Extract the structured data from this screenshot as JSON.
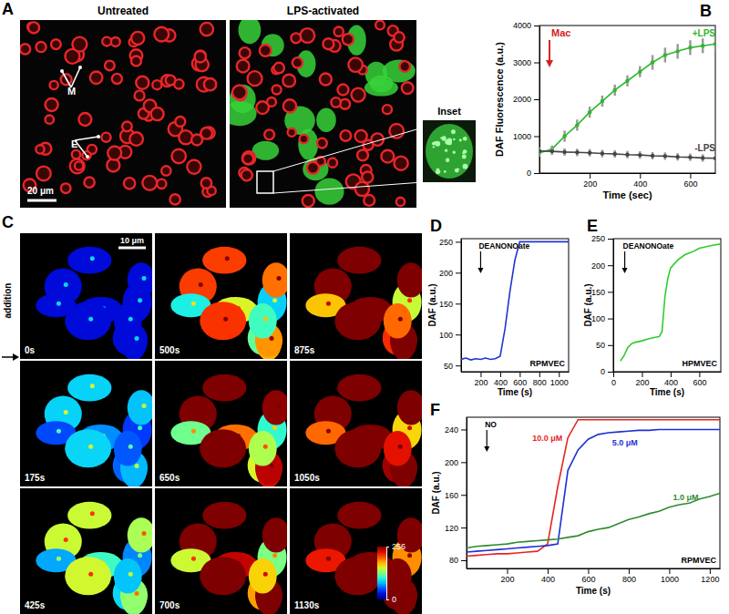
{
  "chart_data": [
    {
      "type": "line",
      "title": "B",
      "xlabel": "Time (sec)",
      "ylabel": "DAF Fluorescence (a.u.)",
      "xlim": [
        0,
        700
      ],
      "xticks": [
        200,
        400,
        600
      ],
      "ylim": [
        0,
        4000
      ],
      "yticks": [
        0,
        1000,
        2000,
        3000,
        4000
      ],
      "annotations": [
        {
          "text": "Mac",
          "x": 40
        }
      ],
      "series": [
        {
          "name": "+LPS",
          "color": "#2db82d",
          "x": [
            0,
            50,
            100,
            150,
            200,
            250,
            300,
            350,
            400,
            450,
            500,
            550,
            600,
            650,
            700
          ],
          "values": [
            550,
            650,
            1000,
            1300,
            1650,
            1950,
            2250,
            2500,
            2750,
            3000,
            3200,
            3300,
            3400,
            3450,
            3500
          ],
          "errors": [
            100,
            100,
            150,
            150,
            150,
            150,
            150,
            150,
            150,
            200,
            200,
            200,
            200,
            200,
            200
          ]
        },
        {
          "name": "-LPS",
          "color": "#444444",
          "x": [
            0,
            50,
            100,
            150,
            200,
            250,
            300,
            350,
            400,
            450,
            500,
            550,
            600,
            650,
            700
          ],
          "values": [
            600,
            590,
            570,
            560,
            550,
            530,
            520,
            500,
            490,
            470,
            460,
            440,
            430,
            410,
            400
          ],
          "errors": [
            100,
            100,
            100,
            100,
            100,
            100,
            100,
            100,
            100,
            100,
            100,
            100,
            100,
            100,
            100
          ]
        }
      ]
    },
    {
      "type": "line",
      "title": "D",
      "xlabel": "Time (s)",
      "ylabel": "DAF (a.u.)",
      "xlim": [
        0,
        1100
      ],
      "xticks": [
        200,
        400,
        600,
        800,
        1000
      ],
      "ylim": [
        40,
        255
      ],
      "yticks": [
        50,
        100,
        150,
        200,
        250
      ],
      "annotations": [
        {
          "text": "DEANONOate",
          "x": 200
        },
        {
          "text": "RPMVEC"
        }
      ],
      "series": [
        {
          "color": "#2035d0",
          "x": [
            0,
            50,
            100,
            150,
            200,
            250,
            300,
            350,
            400,
            450,
            500,
            550,
            600,
            650,
            700,
            750,
            800,
            850,
            900,
            950,
            1000,
            1050,
            1100
          ],
          "values": [
            60,
            62,
            59,
            61,
            60,
            62,
            60,
            61,
            65,
            110,
            170,
            220,
            250,
            250,
            250,
            250,
            250,
            250,
            250,
            250,
            250,
            250,
            250
          ]
        }
      ]
    },
    {
      "type": "line",
      "title": "E",
      "xlabel": "Time (s)",
      "ylabel": "DAF (a.u.)",
      "xlim": [
        0,
        750
      ],
      "xticks": [
        0,
        200,
        400,
        600
      ],
      "ylim": [
        0,
        250
      ],
      "yticks": [
        0,
        50,
        100,
        150,
        200,
        250
      ],
      "annotations": [
        {
          "text": "DEANONOate",
          "x": 80
        },
        {
          "text": "HPMVEC"
        }
      ],
      "series": [
        {
          "color": "#2ecc2e",
          "x": [
            50,
            75,
            100,
            125,
            150,
            200,
            250,
            300,
            320,
            340,
            360,
            380,
            400,
            450,
            500,
            550,
            600,
            650,
            700,
            750
          ],
          "values": [
            20,
            30,
            45,
            52,
            55,
            58,
            62,
            65,
            66,
            75,
            140,
            175,
            195,
            210,
            220,
            225,
            232,
            235,
            238,
            240
          ]
        }
      ]
    },
    {
      "type": "line",
      "title": "F",
      "xlabel": "Time (s)",
      "ylabel": "DAF (a.u.)",
      "xlim": [
        0,
        1250
      ],
      "xticks": [
        200,
        400,
        600,
        800,
        1000,
        1200
      ],
      "ylim": [
        70,
        255
      ],
      "yticks": [
        80,
        120,
        160,
        200,
        240
      ],
      "annotations": [
        {
          "text": "NO",
          "x": 100
        },
        {
          "text": "RPMVEC"
        }
      ],
      "series": [
        {
          "name": "10.0 μM",
          "color": "#e8231f",
          "x": [
            0,
            50,
            100,
            150,
            200,
            250,
            300,
            350,
            400,
            450,
            500,
            550,
            600,
            650,
            700,
            750,
            800,
            850,
            900,
            950,
            1000,
            1050,
            1100,
            1150,
            1200,
            1250
          ],
          "values": [
            85,
            86,
            87,
            88,
            88,
            89,
            90,
            91,
            100,
            170,
            230,
            252,
            252,
            252,
            252,
            252,
            252,
            252,
            252,
            252,
            252,
            252,
            252,
            252,
            252,
            252
          ]
        },
        {
          "name": "5.0 μM",
          "color": "#1f2fd8",
          "x": [
            0,
            50,
            100,
            150,
            200,
            250,
            300,
            350,
            400,
            450,
            500,
            550,
            600,
            650,
            700,
            750,
            800,
            850,
            900,
            950,
            1000,
            1050,
            1100,
            1150,
            1200,
            1250
          ],
          "values": [
            90,
            91,
            92,
            93,
            94,
            95,
            96,
            97,
            98,
            100,
            190,
            215,
            228,
            234,
            236,
            237,
            238,
            239,
            239,
            240,
            240,
            240,
            240,
            240,
            240,
            240
          ]
        },
        {
          "name": "1.0 μM",
          "color": "#2f8a2f",
          "x": [
            0,
            50,
            100,
            150,
            200,
            250,
            300,
            350,
            400,
            450,
            500,
            550,
            600,
            650,
            700,
            750,
            800,
            850,
            900,
            950,
            1000,
            1050,
            1100,
            1150,
            1200,
            1250
          ],
          "values": [
            95,
            97,
            98,
            99,
            100,
            102,
            103,
            104,
            105,
            106,
            108,
            110,
            115,
            118,
            120,
            125,
            130,
            133,
            137,
            140,
            145,
            148,
            150,
            155,
            158,
            162
          ]
        }
      ]
    }
  ],
  "images": {
    "A": {
      "label": "A",
      "panels": [
        {
          "title": "Untreated",
          "markers": [
            "M",
            "E"
          ],
          "scale_bar": "20 μm"
        },
        {
          "title": "LPS-activated"
        }
      ],
      "inset": "Inset"
    },
    "C": {
      "label": "C",
      "side_label": "addition",
      "times": [
        "0s",
        "175s",
        "425s",
        "500s",
        "650s",
        "700s",
        "875s",
        "1050s",
        "1130s"
      ],
      "scale_bar": "10 μm",
      "colorbar_range": [
        0,
        256
      ],
      "colorbar_ticks": [
        0,
        256
      ]
    }
  }
}
